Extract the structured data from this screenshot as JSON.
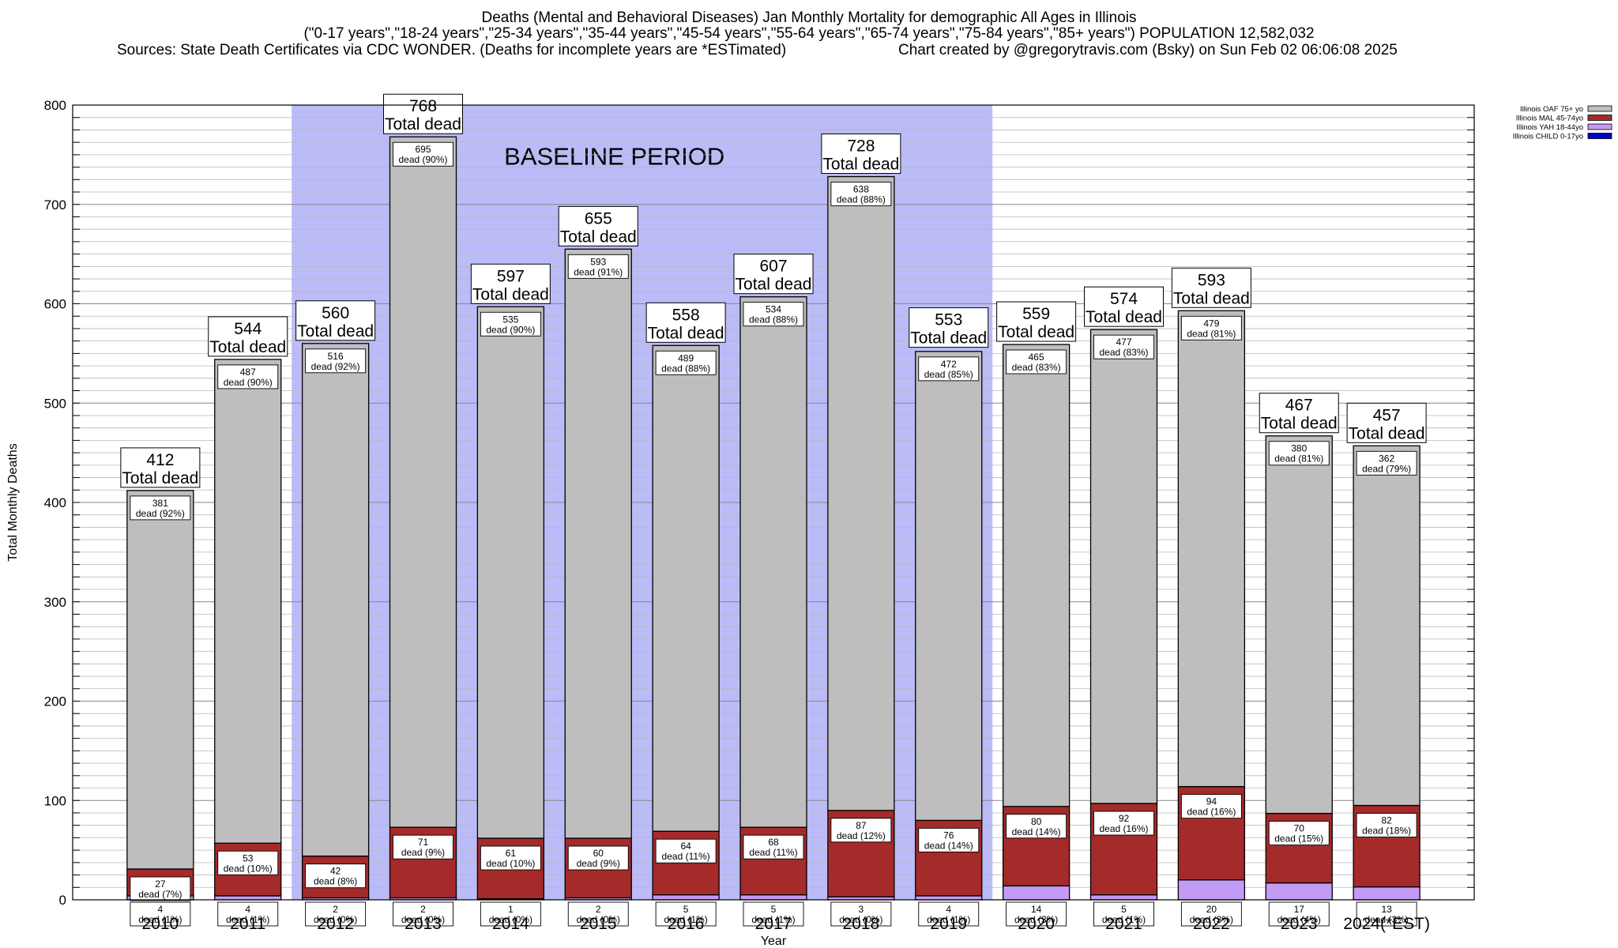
{
  "header": {
    "title": "Deaths (Mental and Behavioral Diseases) Jan Monthly Mortality for demographic All Ages in Illinois",
    "subtitle": "(\"0-17 years\",\"18-24 years\",\"25-34 years\",\"35-44 years\",\"45-54 years\",\"55-64 years\",\"65-74 years\",\"75-84 years\",\"85+ years\") POPULATION 12,582,032",
    "source": "Sources: State Death Certificates via CDC WONDER. (Deaths for incomplete years are *ESTimated)",
    "credit": "Chart created by @gregorytravis.com (Bsky) on Sun Feb 02 06:06:08 2025"
  },
  "chart_data": {
    "type": "bar",
    "stacked": true,
    "xlabel": "Year",
    "ylabel": "Total Monthly Deaths",
    "ylim": [
      0,
      800
    ],
    "yticks": [
      0,
      100,
      200,
      300,
      400,
      500,
      600,
      700,
      800
    ],
    "grid": true,
    "legend_position": "top-right",
    "categories": [
      "2010",
      "2011",
      "2012",
      "2013",
      "2014",
      "2015",
      "2016",
      "2017",
      "2018",
      "2019",
      "2020",
      "2021",
      "2022",
      "2023",
      "2024(*EST)"
    ],
    "totals": [
      412,
      544,
      560,
      768,
      597,
      655,
      558,
      607,
      728,
      553,
      559,
      574,
      593,
      467,
      457
    ],
    "total_label_suffix": "Total dead",
    "segment_label_prefix": "dead",
    "baseline": {
      "label": "BASELINE PERIOD",
      "from": "2012",
      "to": "2019",
      "color": "#bbbbf8"
    },
    "series": [
      {
        "name": "Illinois CHILD 0-17yo",
        "color": "#0000cc",
        "values": [
          0,
          0,
          0,
          0,
          0,
          0,
          0,
          0,
          0,
          0,
          0,
          0,
          0,
          0,
          0
        ],
        "pct": [
          "",
          "",
          "",
          "",
          "",
          "",
          "",
          "",
          "",
          "",
          "",
          "",
          "",
          "",
          ""
        ]
      },
      {
        "name": "Illinois YAH 18-44yo",
        "color": "#c39af5",
        "values": [
          4,
          4,
          2,
          2,
          1,
          2,
          5,
          5,
          3,
          4,
          14,
          5,
          20,
          17,
          13
        ],
        "pct": [
          "1%",
          "1%",
          "0%",
          "0%",
          "0%",
          "0%",
          "1%",
          "1%",
          "0%",
          "1%",
          "3%",
          "1%",
          "3%",
          "4%",
          "3%"
        ]
      },
      {
        "name": "Illinois MAL 45-74yo",
        "color": "#a52a2a",
        "values": [
          27,
          53,
          42,
          71,
          61,
          60,
          64,
          68,
          87,
          76,
          80,
          92,
          94,
          70,
          82
        ],
        "pct": [
          "7%",
          "10%",
          "8%",
          "9%",
          "10%",
          "9%",
          "11%",
          "11%",
          "12%",
          "14%",
          "14%",
          "16%",
          "16%",
          "15%",
          "18%"
        ]
      },
      {
        "name": "Illinois OAF 75+ yo",
        "color": "#bebebe",
        "values": [
          381,
          487,
          516,
          695,
          535,
          593,
          489,
          534,
          638,
          472,
          465,
          477,
          479,
          380,
          362
        ],
        "pct": [
          "92%",
          "90%",
          "92%",
          "90%",
          "90%",
          "91%",
          "88%",
          "88%",
          "88%",
          "85%",
          "83%",
          "83%",
          "81%",
          "81%",
          "79%"
        ]
      }
    ]
  }
}
